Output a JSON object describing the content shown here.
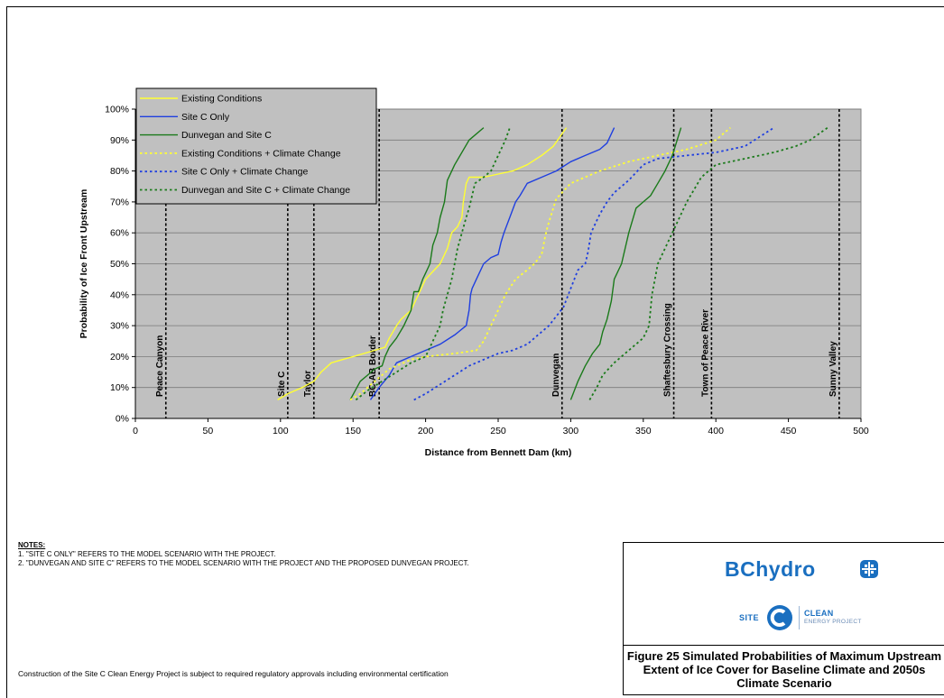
{
  "chart_data": {
    "type": "line",
    "xlabel": "Distance from Bennett Dam (km)",
    "ylabel": "Probability of Ice Front Upstream",
    "xlim": [
      0,
      500
    ],
    "ylim": [
      0,
      100
    ],
    "xticks": [
      0,
      50,
      100,
      150,
      200,
      250,
      300,
      350,
      400,
      450,
      500
    ],
    "yticks": [
      0,
      10,
      20,
      30,
      40,
      50,
      60,
      70,
      80,
      90,
      100
    ],
    "xtick_labels": [
      "0",
      "50",
      "100",
      "150",
      "200",
      "250",
      "300",
      "350",
      "400",
      "450",
      "500"
    ],
    "ytick_labels": [
      "0%",
      "10%",
      "20%",
      "30%",
      "40%",
      "50%",
      "60%",
      "70%",
      "80%",
      "90%",
      "100%"
    ],
    "grid": "horizontal",
    "background": "#c0c0c0",
    "legend_position": "top-left",
    "locations": [
      {
        "name": "Peace Canyon",
        "x": 21
      },
      {
        "name": "Site C",
        "x": 105
      },
      {
        "name": "Taylor",
        "x": 123
      },
      {
        "name": "BC-AB Border",
        "x": 168
      },
      {
        "name": "Dunvegan",
        "x": 294
      },
      {
        "name": "Shaftesbury Crossing",
        "x": 371
      },
      {
        "name": "Town of Peace River",
        "x": 397
      },
      {
        "name": "Sunny Valley",
        "x": 485
      }
    ],
    "series": [
      {
        "name": "Existing Conditions",
        "color": "#ffff33",
        "dash": "solid",
        "x": [
          98,
          105,
          115,
          123,
          128,
          135,
          150,
          165,
          172,
          175,
          180,
          183,
          190,
          195,
          200,
          210,
          215,
          218,
          222,
          225,
          226,
          228,
          230,
          240,
          250,
          260,
          270,
          280,
          288,
          294,
          297
        ],
        "y": [
          6,
          8,
          10,
          12,
          15,
          18,
          20,
          22,
          23,
          26,
          30,
          32,
          35,
          40,
          45,
          50,
          55,
          60,
          62,
          65,
          70,
          76,
          78,
          78,
          79,
          80,
          82,
          85,
          88,
          92,
          94
        ]
      },
      {
        "name": "Site C Only",
        "color": "#1f3fe0",
        "dash": "solid",
        "x": [
          162,
          168,
          175,
          180,
          190,
          200,
          210,
          220,
          228,
          230,
          231,
          232,
          235,
          240,
          245,
          250,
          252,
          254,
          258,
          262,
          265,
          270,
          280,
          290,
          300,
          310,
          320,
          325,
          330
        ],
        "y": [
          6,
          10,
          14,
          18,
          20,
          22,
          24,
          27,
          30,
          35,
          40,
          42,
          45,
          50,
          52,
          53,
          57,
          60,
          65,
          70,
          72,
          76,
          78,
          80,
          83,
          85,
          87,
          89,
          94
        ]
      },
      {
        "name": "Dunvegan and Site C",
        "color": "#1a7a1a",
        "dash": "solid",
        "x": [
          148,
          155,
          160,
          165,
          170,
          172,
          175,
          180,
          185,
          190,
          192,
          195,
          198,
          200,
          203,
          205,
          208,
          210,
          213,
          215,
          220,
          230,
          240
        ],
        "y": [
          6,
          12,
          14,
          16,
          17,
          20,
          23,
          26,
          30,
          35,
          41,
          41,
          45,
          47,
          50,
          56,
          60,
          65,
          70,
          77,
          82,
          90,
          94
        ]
      },
      {
        "name": "Existing Conditions + Climate Change",
        "color": "#ffff33",
        "dash": "dotted",
        "x": [
          148,
          155,
          165,
          175,
          190,
          200,
          220,
          235,
          240,
          245,
          250,
          255,
          262,
          270,
          275,
          280,
          282,
          284,
          286,
          290,
          300,
          320,
          340,
          360,
          380,
          400,
          410
        ],
        "y": [
          6,
          8,
          12,
          16,
          19,
          20,
          21,
          22,
          25,
          30,
          35,
          40,
          45,
          48,
          50,
          53,
          58,
          62,
          65,
          71,
          76,
          80,
          83,
          85,
          87,
          90,
          94
        ]
      },
      {
        "name": "Site C Only + Climate Change",
        "color": "#1f3fe0",
        "dash": "dotted",
        "x": [
          192,
          200,
          210,
          220,
          230,
          240,
          250,
          260,
          270,
          280,
          285,
          290,
          295,
          300,
          305,
          310,
          312,
          314,
          318,
          320,
          325,
          330,
          340,
          350,
          360,
          380,
          400,
          420,
          430,
          440
        ],
        "y": [
          6,
          8,
          11,
          14,
          17,
          19,
          21,
          22,
          24,
          28,
          30,
          33,
          36,
          42,
          48,
          50,
          54,
          60,
          64,
          66,
          70,
          73,
          77,
          82,
          84,
          85,
          86,
          88,
          91,
          94
        ]
      },
      {
        "name": "Dunvegan and Site C + Climate Change",
        "color": "#1a7a1a",
        "dash": "dotted",
        "x": [
          152,
          160,
          170,
          180,
          190,
          200,
          205,
          210,
          212,
          215,
          218,
          220,
          222,
          225,
          228,
          230,
          232,
          234,
          240,
          245,
          250,
          255,
          258
        ],
        "y": [
          6,
          9,
          12,
          15,
          18,
          20,
          25,
          30,
          35,
          40,
          45,
          50,
          55,
          60,
          65,
          68,
          72,
          76,
          78,
          80,
          85,
          90,
          94
        ]
      },
      {
        "name": "",
        "color": "#1a7a1a",
        "dash": "solid",
        "x": [
          300,
          305,
          310,
          315,
          320,
          322,
          325,
          328,
          330,
          335,
          340,
          345,
          350,
          355,
          360,
          365,
          370,
          372,
          376
        ],
        "y": [
          6,
          12,
          17,
          21,
          24,
          28,
          32,
          38,
          45,
          50,
          60,
          68,
          70,
          72,
          76,
          80,
          85,
          88,
          94
        ]
      },
      {
        "name": "",
        "color": "#1a7a1a",
        "dash": "dotted",
        "x": [
          313,
          318,
          322,
          330,
          340,
          350,
          354,
          355,
          356,
          358,
          360,
          365,
          370,
          375,
          380,
          385,
          390,
          395,
          400,
          420,
          440,
          455,
          465,
          477
        ],
        "y": [
          6,
          10,
          14,
          18,
          22,
          26,
          30,
          35,
          40,
          45,
          50,
          55,
          60,
          65,
          70,
          74,
          78,
          80,
          82,
          84,
          86,
          88,
          90,
          94
        ]
      }
    ]
  },
  "notes": {
    "title": "NOTES:",
    "items": [
      "1. \"SITE C ONLY\" REFERS TO THE MODEL SCENARIO WITH THE PROJECT.",
      "2. \"DUNVEGAN AND SITE C\" REFERS TO THE MODEL SCENARIO WITH THE PROJECT AND THE PROPOSED DUNVEGAN PROJECT."
    ]
  },
  "footer_text": "Construction of the Site C Clean Energy Project is subject to required regulatory approvals including environmental certification",
  "title_block": {
    "logo_bc": "BC",
    "logo_hydro": "hydro",
    "site_word": "SITE",
    "clean_word": "CLEAN",
    "energy_word": "ENERGY PROJECT",
    "caption": "Figure 25 Simulated Probabilities of Maximum Upstream Extent of Ice Cover for Baseline Climate and 2050s Climate Scenario",
    "brand_color": "#1a6fc0"
  }
}
